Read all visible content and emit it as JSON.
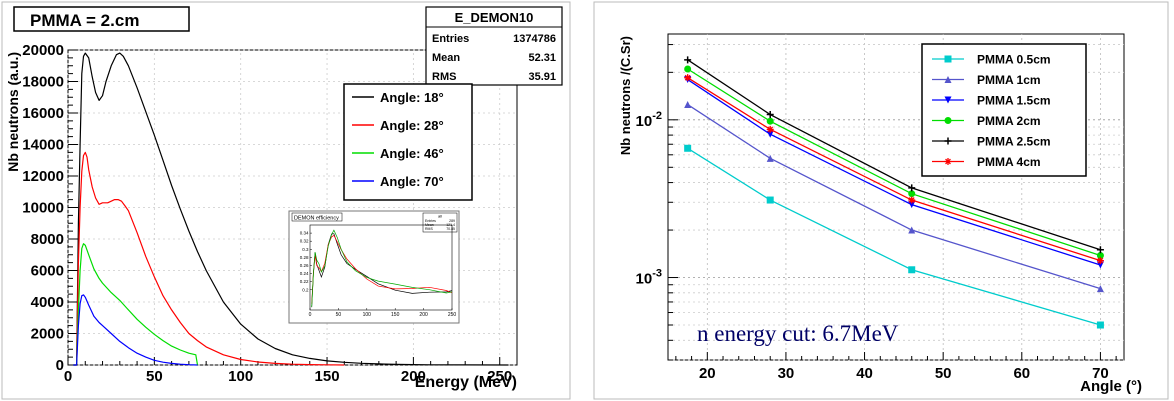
{
  "chart_data": [
    {
      "type": "line",
      "histogram_title": "PMMA = 2.cm",
      "xlabel": "Energy (MeV)",
      "ylabel": "Nb neutrons (a.u.)",
      "xlim": [
        0,
        260
      ],
      "ylim": [
        0,
        20000
      ],
      "x_ticks": [
        "0",
        "50",
        "100",
        "150",
        "200",
        "250"
      ],
      "y_ticks": [
        "0",
        "2000",
        "4000",
        "6000",
        "8000",
        "10000",
        "12000",
        "14000",
        "16000",
        "18000",
        "20000"
      ],
      "grid": true,
      "legend_position": "top-right",
      "stats_box": {
        "name": "E_DEMON10",
        "rows": [
          {
            "label": "Entries",
            "value": "1374786"
          },
          {
            "label": "Mean",
            "value": "52.31"
          },
          {
            "label": "RMS",
            "value": "35.91"
          }
        ]
      },
      "series": [
        {
          "name": "Angle: 18°",
          "color": "#000000",
          "points": [
            [
              3,
              0
            ],
            [
              5,
              0
            ],
            [
              6,
              9000
            ],
            [
              7,
              14000
            ],
            [
              8,
              18500
            ],
            [
              9,
              19600
            ],
            [
              10,
              19800
            ],
            [
              12,
              19500
            ],
            [
              14,
              18300
            ],
            [
              16,
              17300
            ],
            [
              18,
              16800
            ],
            [
              20,
              17100
            ],
            [
              22,
              18000
            ],
            [
              25,
              19000
            ],
            [
              28,
              19700
            ],
            [
              30,
              19800
            ],
            [
              32,
              19600
            ],
            [
              35,
              19000
            ],
            [
              40,
              17600
            ],
            [
              45,
              16100
            ],
            [
              50,
              14600
            ],
            [
              55,
              13000
            ],
            [
              60,
              11400
            ],
            [
              65,
              9900
            ],
            [
              70,
              8500
            ],
            [
              75,
              7200
            ],
            [
              80,
              6000
            ],
            [
              90,
              4000
            ],
            [
              100,
              2600
            ],
            [
              110,
              1650
            ],
            [
              120,
              1050
            ],
            [
              130,
              650
            ],
            [
              140,
              420
            ],
            [
              150,
              260
            ],
            [
              160,
              170
            ],
            [
              170,
              110
            ],
            [
              180,
              70
            ],
            [
              190,
              40
            ],
            [
              200,
              25
            ],
            [
              210,
              12
            ],
            [
              230,
              4
            ],
            [
              255,
              0
            ]
          ]
        },
        {
          "name": "Angle: 28°",
          "color": "#ff0000",
          "points": [
            [
              3,
              0
            ],
            [
              5,
              0
            ],
            [
              6,
              6500
            ],
            [
              7,
              10000
            ],
            [
              8,
              12300
            ],
            [
              9,
              13300
            ],
            [
              10,
              13500
            ],
            [
              11,
              13200
            ],
            [
              12,
              12400
            ],
            [
              14,
              11300
            ],
            [
              16,
              10600
            ],
            [
              18,
              10200
            ],
            [
              20,
              10300
            ],
            [
              23,
              10300
            ],
            [
              25,
              10400
            ],
            [
              27,
              10500
            ],
            [
              29,
              10500
            ],
            [
              31,
              10400
            ],
            [
              33,
              10100
            ],
            [
              35,
              9800
            ],
            [
              40,
              8400
            ],
            [
              45,
              6900
            ],
            [
              50,
              5600
            ],
            [
              55,
              4400
            ],
            [
              60,
              3500
            ],
            [
              65,
              2700
            ],
            [
              70,
              2000
            ],
            [
              75,
              1550
            ],
            [
              80,
              1150
            ],
            [
              90,
              650
            ],
            [
              100,
              350
            ],
            [
              110,
              190
            ],
            [
              120,
              100
            ],
            [
              130,
              50
            ],
            [
              140,
              25
            ],
            [
              150,
              10
            ],
            [
              160,
              0
            ]
          ]
        },
        {
          "name": "Angle: 46°",
          "color": "#00dd00",
          "points": [
            [
              3,
              0
            ],
            [
              5,
              0
            ],
            [
              6,
              3500
            ],
            [
              7,
              6000
            ],
            [
              8,
              7400
            ],
            [
              9,
              7700
            ],
            [
              10,
              7600
            ],
            [
              12,
              7000
            ],
            [
              15,
              6100
            ],
            [
              18,
              5500
            ],
            [
              20,
              5200
            ],
            [
              25,
              4600
            ],
            [
              30,
              4100
            ],
            [
              35,
              3500
            ],
            [
              40,
              2900
            ],
            [
              45,
              2400
            ],
            [
              50,
              1950
            ],
            [
              55,
              1550
            ],
            [
              60,
              1200
            ],
            [
              65,
              950
            ],
            [
              70,
              750
            ],
            [
              74,
              650
            ],
            [
              75,
              0
            ]
          ]
        },
        {
          "name": "Angle: 70°",
          "color": "#0000ff",
          "points": [
            [
              3,
              0
            ],
            [
              5,
              0
            ],
            [
              6,
              2500
            ],
            [
              7,
              3900
            ],
            [
              8,
              4400
            ],
            [
              9,
              4450
            ],
            [
              10,
              4300
            ],
            [
              12,
              3800
            ],
            [
              15,
              3100
            ],
            [
              18,
              2700
            ],
            [
              20,
              2500
            ],
            [
              25,
              2000
            ],
            [
              30,
              1500
            ],
            [
              35,
              1100
            ],
            [
              40,
              750
            ],
            [
              45,
              500
            ],
            [
              50,
              300
            ],
            [
              55,
              180
            ],
            [
              60,
              100
            ],
            [
              65,
              50
            ],
            [
              70,
              20
            ],
            [
              75,
              0
            ]
          ]
        }
      ],
      "inset": {
        "title": "DEMON efficiency",
        "stats_name": "all",
        "stats_rows": [
          {
            "label": "Entries",
            "value": "289"
          },
          {
            "label": "Mean",
            "value": "121.4"
          },
          {
            "label": "RMS",
            "value": "70.85"
          }
        ],
        "xlim": [
          0,
          250
        ],
        "ylim": [
          0.15,
          0.36
        ],
        "x_ticks": [
          "0",
          "50",
          "100",
          "150",
          "200",
          "250"
        ],
        "y_ticks": [
          "0.2",
          "0.22",
          "0.24",
          "0.26",
          "0.28",
          "0.3",
          "0.32",
          "0.34"
        ],
        "series_colors": [
          "#000000",
          "#ff0000",
          "#00aa00"
        ],
        "points": [
          [
            3,
            0.16
          ],
          [
            6,
            0.24
          ],
          [
            9,
            0.29
          ],
          [
            12,
            0.265
          ],
          [
            16,
            0.255
          ],
          [
            20,
            0.24
          ],
          [
            26,
            0.26
          ],
          [
            32,
            0.31
          ],
          [
            38,
            0.335
          ],
          [
            42,
            0.34
          ],
          [
            48,
            0.32
          ],
          [
            55,
            0.295
          ],
          [
            65,
            0.27
          ],
          [
            80,
            0.25
          ],
          [
            100,
            0.23
          ],
          [
            120,
            0.215
          ],
          [
            150,
            0.205
          ],
          [
            180,
            0.2
          ],
          [
            210,
            0.2
          ],
          [
            240,
            0.195
          ],
          [
            250,
            0.195
          ]
        ]
      }
    },
    {
      "type": "line",
      "xlabel": "Angle (°)",
      "ylabel": "Nb neutrons /(C.Sr)",
      "xlim": [
        15,
        73
      ],
      "ylim": [
        0.0003,
        0.035
      ],
      "log_y": true,
      "x_ticks": [
        "20",
        "30",
        "40",
        "50",
        "60",
        "70"
      ],
      "y_ticks": [
        {
          "value": 0.01,
          "label": "10⁻²"
        },
        {
          "value": 0.001,
          "label": "10⁻³"
        }
      ],
      "grid": true,
      "legend_position": "top-right",
      "annotation": "n energy cut: 6.7MeV",
      "series": [
        {
          "name": "PMMA 0.5cm",
          "color": "#00cccc",
          "marker": "square",
          "x": [
            17.5,
            28,
            46,
            70
          ],
          "values": [
            0.0066,
            0.0031,
            0.00112,
            0.0005
          ]
        },
        {
          "name": "PMMA 1cm",
          "color": "#5555cc",
          "marker": "triangle-up",
          "x": [
            17.5,
            28,
            46,
            70
          ],
          "values": [
            0.0125,
            0.0057,
            0.002,
            0.00085
          ]
        },
        {
          "name": "PMMA 1.5cm",
          "color": "#0000ff",
          "marker": "triangle-down",
          "x": [
            17.5,
            28,
            46,
            70
          ],
          "values": [
            0.018,
            0.0081,
            0.0029,
            0.0012
          ]
        },
        {
          "name": "PMMA 2cm",
          "color": "#00dd00",
          "marker": "circle",
          "x": [
            17.5,
            28,
            46,
            70
          ],
          "values": [
            0.021,
            0.0098,
            0.0034,
            0.00138
          ]
        },
        {
          "name": "PMMA 2.5cm",
          "color": "#000000",
          "marker": "plus",
          "x": [
            17.5,
            28,
            46,
            70
          ],
          "values": [
            0.024,
            0.0108,
            0.0037,
            0.0015
          ]
        },
        {
          "name": "PMMA 4cm",
          "color": "#ff0000",
          "marker": "star",
          "x": [
            17.5,
            28,
            46,
            70
          ],
          "values": [
            0.0185,
            0.0087,
            0.0031,
            0.00128
          ]
        }
      ]
    }
  ]
}
